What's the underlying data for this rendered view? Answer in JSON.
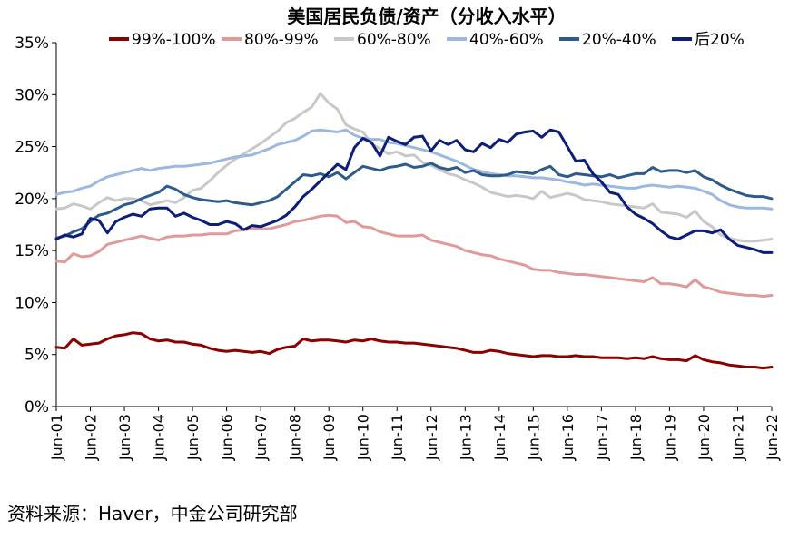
{
  "chart_data": {
    "type": "line",
    "title": "美国居民负债/资产（分收入水平）",
    "xlabel": "",
    "ylabel": "",
    "ylim": [
      0,
      35
    ],
    "y_ticks": [
      "0%",
      "5%",
      "10%",
      "15%",
      "20%",
      "25%",
      "30%",
      "35%"
    ],
    "y_tick_values": [
      0,
      5,
      10,
      15,
      20,
      25,
      30,
      35
    ],
    "x_ticks": [
      "Jun-01",
      "Jun-02",
      "Jun-03",
      "Jun-04",
      "Jun-05",
      "Jun-06",
      "Jun-07",
      "Jun-08",
      "Jun-09",
      "Jun-10",
      "Jun-11",
      "Jun-12",
      "Jun-13",
      "Jun-14",
      "Jun-15",
      "Jun-16",
      "Jun-17",
      "Jun-18",
      "Jun-19",
      "Jun-20",
      "Jun-21",
      "Jun-22"
    ],
    "x_tick_values": [
      2001.5,
      2002.5,
      2003.5,
      2004.5,
      2005.5,
      2006.5,
      2007.5,
      2008.5,
      2009.5,
      2010.5,
      2011.5,
      2012.5,
      2013.5,
      2014.5,
      2015.5,
      2016.5,
      2017.5,
      2018.5,
      2019.5,
      2020.5,
      2021.5,
      2022.5
    ],
    "xlim": [
      2001.5,
      2022.5
    ],
    "legend_position": "top",
    "series": [
      {
        "name": "99%-100%",
        "color": "#8B0000",
        "x": [
          2001.5,
          2001.75,
          2002.0,
          2002.25,
          2002.5,
          2002.75,
          2003.0,
          2003.25,
          2003.5,
          2003.75,
          2004.0,
          2004.25,
          2004.5,
          2004.75,
          2005.0,
          2005.25,
          2005.5,
          2005.75,
          2006.0,
          2006.25,
          2006.5,
          2006.75,
          2007.0,
          2007.25,
          2007.5,
          2007.75,
          2008.0,
          2008.25,
          2008.5,
          2008.75,
          2009.0,
          2009.25,
          2009.5,
          2009.75,
          2010.0,
          2010.25,
          2010.5,
          2010.75,
          2011.0,
          2011.25,
          2011.5,
          2011.75,
          2012.0,
          2012.25,
          2012.5,
          2012.75,
          2013.0,
          2013.25,
          2013.5,
          2013.75,
          2014.0,
          2014.25,
          2014.5,
          2014.75,
          2015.0,
          2015.25,
          2015.5,
          2015.75,
          2016.0,
          2016.25,
          2016.5,
          2016.75,
          2017.0,
          2017.25,
          2017.5,
          2017.75,
          2018.0,
          2018.25,
          2018.5,
          2018.75,
          2019.0,
          2019.25,
          2019.5,
          2019.75,
          2020.0,
          2020.25,
          2020.5,
          2020.75,
          2021.0,
          2021.25,
          2021.5,
          2021.75,
          2022.0,
          2022.25,
          2022.5
        ],
        "values": [
          5.7,
          5.6,
          6.5,
          5.9,
          6.0,
          6.1,
          6.5,
          6.8,
          6.9,
          7.1,
          7.0,
          6.5,
          6.3,
          6.4,
          6.2,
          6.2,
          6.0,
          5.9,
          5.6,
          5.4,
          5.3,
          5.4,
          5.3,
          5.2,
          5.3,
          5.1,
          5.5,
          5.7,
          5.8,
          6.5,
          6.3,
          6.4,
          6.4,
          6.3,
          6.2,
          6.4,
          6.3,
          6.5,
          6.3,
          6.2,
          6.2,
          6.1,
          6.1,
          6.0,
          5.9,
          5.8,
          5.7,
          5.6,
          5.4,
          5.2,
          5.2,
          5.4,
          5.3,
          5.1,
          5.0,
          4.9,
          4.8,
          4.9,
          4.9,
          4.8,
          4.8,
          4.9,
          4.8,
          4.8,
          4.7,
          4.7,
          4.7,
          4.6,
          4.7,
          4.6,
          4.8,
          4.6,
          4.5,
          4.5,
          4.4,
          4.9,
          4.5,
          4.3,
          4.2,
          4.0,
          3.9,
          3.8,
          3.8,
          3.7,
          3.8
        ]
      },
      {
        "name": "80%-99%",
        "color": "#E09A9A",
        "x": [
          2001.5,
          2001.75,
          2002.0,
          2002.25,
          2002.5,
          2002.75,
          2003.0,
          2003.25,
          2003.5,
          2003.75,
          2004.0,
          2004.25,
          2004.5,
          2004.75,
          2005.0,
          2005.25,
          2005.5,
          2005.75,
          2006.0,
          2006.25,
          2006.5,
          2006.75,
          2007.0,
          2007.25,
          2007.5,
          2007.75,
          2008.0,
          2008.25,
          2008.5,
          2008.75,
          2009.0,
          2009.25,
          2009.5,
          2009.75,
          2010.0,
          2010.25,
          2010.5,
          2010.75,
          2011.0,
          2011.25,
          2011.5,
          2011.75,
          2012.0,
          2012.25,
          2012.5,
          2012.75,
          2013.0,
          2013.25,
          2013.5,
          2013.75,
          2014.0,
          2014.25,
          2014.5,
          2014.75,
          2015.0,
          2015.25,
          2015.5,
          2015.75,
          2016.0,
          2016.25,
          2016.5,
          2016.75,
          2017.0,
          2017.25,
          2017.5,
          2017.75,
          2018.0,
          2018.25,
          2018.5,
          2018.75,
          2019.0,
          2019.25,
          2019.5,
          2019.75,
          2020.0,
          2020.25,
          2020.5,
          2020.75,
          2021.0,
          2021.25,
          2021.5,
          2021.75,
          2022.0,
          2022.25,
          2022.5
        ],
        "values": [
          14.0,
          13.9,
          14.7,
          14.4,
          14.5,
          14.9,
          15.6,
          15.8,
          16.0,
          16.2,
          16.4,
          16.2,
          16.0,
          16.3,
          16.4,
          16.4,
          16.5,
          16.5,
          16.6,
          16.6,
          16.6,
          16.9,
          17.0,
          17.1,
          17.1,
          17.1,
          17.3,
          17.5,
          17.8,
          17.9,
          18.1,
          18.3,
          18.4,
          18.3,
          17.7,
          17.8,
          17.3,
          17.2,
          16.8,
          16.6,
          16.4,
          16.4,
          16.4,
          16.5,
          16.0,
          15.8,
          15.6,
          15.4,
          15.0,
          14.8,
          14.6,
          14.5,
          14.2,
          14.0,
          13.8,
          13.6,
          13.2,
          13.1,
          13.1,
          12.9,
          12.8,
          12.7,
          12.7,
          12.6,
          12.5,
          12.4,
          12.3,
          12.2,
          12.1,
          12.0,
          12.4,
          11.8,
          11.8,
          11.7,
          11.5,
          12.2,
          11.5,
          11.3,
          11.0,
          10.9,
          10.8,
          10.7,
          10.7,
          10.6,
          10.7
        ]
      },
      {
        "name": "60%-80%",
        "color": "#C8C8C8",
        "x": [
          2001.5,
          2001.75,
          2002.0,
          2002.25,
          2002.5,
          2002.75,
          2003.0,
          2003.25,
          2003.5,
          2003.75,
          2004.0,
          2004.25,
          2004.5,
          2004.75,
          2005.0,
          2005.25,
          2005.5,
          2005.75,
          2006.0,
          2006.25,
          2006.5,
          2006.75,
          2007.0,
          2007.25,
          2007.5,
          2007.75,
          2008.0,
          2008.25,
          2008.5,
          2008.75,
          2009.0,
          2009.25,
          2009.5,
          2009.75,
          2010.0,
          2010.25,
          2010.5,
          2010.75,
          2011.0,
          2011.25,
          2011.5,
          2011.75,
          2012.0,
          2012.25,
          2012.5,
          2012.75,
          2013.0,
          2013.25,
          2013.5,
          2013.75,
          2014.0,
          2014.25,
          2014.5,
          2014.75,
          2015.0,
          2015.25,
          2015.5,
          2015.75,
          2016.0,
          2016.25,
          2016.5,
          2016.75,
          2017.0,
          2017.25,
          2017.5,
          2017.75,
          2018.0,
          2018.25,
          2018.5,
          2018.75,
          2019.0,
          2019.25,
          2019.5,
          2019.75,
          2020.0,
          2020.25,
          2020.5,
          2020.75,
          2021.0,
          2021.25,
          2021.5,
          2021.75,
          2022.0,
          2022.25,
          2022.5
        ],
        "values": [
          19.0,
          19.1,
          19.5,
          19.3,
          19.0,
          19.6,
          20.1,
          19.8,
          20.0,
          20.0,
          19.8,
          19.4,
          19.6,
          19.8,
          19.6,
          20.1,
          20.8,
          21.0,
          21.7,
          22.5,
          23.2,
          23.8,
          24.3,
          24.8,
          25.3,
          25.9,
          26.5,
          27.3,
          27.7,
          28.3,
          28.8,
          30.1,
          29.2,
          28.6,
          27.1,
          26.7,
          26.4,
          25.3,
          24.8,
          24.3,
          24.5,
          24.1,
          24.2,
          23.5,
          23.2,
          22.8,
          22.4,
          22.2,
          21.8,
          21.5,
          21.1,
          20.6,
          20.4,
          20.2,
          20.3,
          20.2,
          20.0,
          20.7,
          20.1,
          20.3,
          20.5,
          20.3,
          19.9,
          19.8,
          19.7,
          19.5,
          19.4,
          19.3,
          19.2,
          19.1,
          19.5,
          18.7,
          18.6,
          18.5,
          18.2,
          18.8,
          17.8,
          17.3,
          16.5,
          16.2,
          16.0,
          15.9,
          15.9,
          16.0,
          16.1
        ]
      },
      {
        "name": "40%-60%",
        "color": "#9DB8E0",
        "x": [
          2001.5,
          2001.75,
          2002.0,
          2002.25,
          2002.5,
          2002.75,
          2003.0,
          2003.25,
          2003.5,
          2003.75,
          2004.0,
          2004.25,
          2004.5,
          2004.75,
          2005.0,
          2005.25,
          2005.5,
          2005.75,
          2006.0,
          2006.25,
          2006.5,
          2006.75,
          2007.0,
          2007.25,
          2007.5,
          2007.75,
          2008.0,
          2008.25,
          2008.5,
          2008.75,
          2009.0,
          2009.25,
          2009.5,
          2009.75,
          2010.0,
          2010.25,
          2010.5,
          2010.75,
          2011.0,
          2011.25,
          2011.5,
          2011.75,
          2012.0,
          2012.25,
          2012.5,
          2012.75,
          2013.0,
          2013.25,
          2013.5,
          2013.75,
          2014.0,
          2014.25,
          2014.5,
          2014.75,
          2015.0,
          2015.25,
          2015.5,
          2015.75,
          2016.0,
          2016.25,
          2016.5,
          2016.75,
          2017.0,
          2017.25,
          2017.5,
          2017.75,
          2018.0,
          2018.25,
          2018.5,
          2018.75,
          2019.0,
          2019.25,
          2019.5,
          2019.75,
          2020.0,
          2020.25,
          2020.5,
          2020.75,
          2021.0,
          2021.25,
          2021.5,
          2021.75,
          2022.0,
          2022.25,
          2022.5
        ],
        "values": [
          20.4,
          20.6,
          20.7,
          21.0,
          21.2,
          21.7,
          22.1,
          22.3,
          22.5,
          22.7,
          22.9,
          22.7,
          22.9,
          23.0,
          23.1,
          23.1,
          23.2,
          23.3,
          23.4,
          23.6,
          23.8,
          24.0,
          24.1,
          24.2,
          24.5,
          24.8,
          25.2,
          25.4,
          25.6,
          26.0,
          26.5,
          26.6,
          26.5,
          26.4,
          26.6,
          26.1,
          25.8,
          25.7,
          25.7,
          25.4,
          25.3,
          25.1,
          24.9,
          24.7,
          24.5,
          24.2,
          23.9,
          23.6,
          23.2,
          22.8,
          22.6,
          22.4,
          22.3,
          22.2,
          22.2,
          22.1,
          22.0,
          22.0,
          21.9,
          21.8,
          21.6,
          21.5,
          21.3,
          21.4,
          21.3,
          21.2,
          21.1,
          21.0,
          21.0,
          21.2,
          21.3,
          21.2,
          21.1,
          21.2,
          21.1,
          21.0,
          20.7,
          20.4,
          19.8,
          19.4,
          19.2,
          19.1,
          19.1,
          19.1,
          19.0
        ]
      },
      {
        "name": "20%-40%",
        "color": "#2E5B8C",
        "x": [
          2001.5,
          2001.75,
          2002.0,
          2002.25,
          2002.5,
          2002.75,
          2003.0,
          2003.25,
          2003.5,
          2003.75,
          2004.0,
          2004.25,
          2004.5,
          2004.75,
          2005.0,
          2005.25,
          2005.5,
          2005.75,
          2006.0,
          2006.25,
          2006.5,
          2006.75,
          2007.0,
          2007.25,
          2007.5,
          2007.75,
          2008.0,
          2008.25,
          2008.5,
          2008.75,
          2009.0,
          2009.25,
          2009.5,
          2009.75,
          2010.0,
          2010.25,
          2010.5,
          2010.75,
          2011.0,
          2011.25,
          2011.5,
          2011.75,
          2012.0,
          2012.25,
          2012.5,
          2012.75,
          2013.0,
          2013.25,
          2013.5,
          2013.75,
          2014.0,
          2014.25,
          2014.5,
          2014.75,
          2015.0,
          2015.25,
          2015.5,
          2015.75,
          2016.0,
          2016.25,
          2016.5,
          2016.75,
          2017.0,
          2017.25,
          2017.5,
          2017.75,
          2018.0,
          2018.25,
          2018.5,
          2018.75,
          2019.0,
          2019.25,
          2019.5,
          2019.75,
          2020.0,
          2020.25,
          2020.5,
          2020.75,
          2021.0,
          2021.25,
          2021.5,
          2021.75,
          2022.0,
          2022.25,
          2022.5
        ],
        "values": [
          16.2,
          16.4,
          16.8,
          17.1,
          17.8,
          18.4,
          18.6,
          19.0,
          19.4,
          19.6,
          20.0,
          20.3,
          20.6,
          21.2,
          20.9,
          20.4,
          20.1,
          19.9,
          19.8,
          19.7,
          19.8,
          19.6,
          19.5,
          19.4,
          19.6,
          19.8,
          20.2,
          20.9,
          21.6,
          22.3,
          22.2,
          22.4,
          22.1,
          22.5,
          21.9,
          22.5,
          23.1,
          22.9,
          22.7,
          23.0,
          23.1,
          23.3,
          23.0,
          23.1,
          23.4,
          23.0,
          22.8,
          23.0,
          22.5,
          22.7,
          22.3,
          22.2,
          22.2,
          22.3,
          22.6,
          22.5,
          22.4,
          22.8,
          23.1,
          22.3,
          22.1,
          22.4,
          22.3,
          22.2,
          22.1,
          22.3,
          22.0,
          22.2,
          22.4,
          22.4,
          23.0,
          22.6,
          22.7,
          22.7,
          22.5,
          22.7,
          22.1,
          21.8,
          21.3,
          20.9,
          20.6,
          20.3,
          20.2,
          20.2,
          20.0
        ]
      },
      {
        "name": "后20%",
        "color": "#0D1E78",
        "x": [
          2001.5,
          2001.75,
          2002.0,
          2002.25,
          2002.5,
          2002.75,
          2003.0,
          2003.25,
          2003.5,
          2003.75,
          2004.0,
          2004.25,
          2004.5,
          2004.75,
          2005.0,
          2005.25,
          2005.5,
          2005.75,
          2006.0,
          2006.25,
          2006.5,
          2006.75,
          2007.0,
          2007.25,
          2007.5,
          2007.75,
          2008.0,
          2008.25,
          2008.5,
          2008.75,
          2009.0,
          2009.25,
          2009.5,
          2009.75,
          2010.0,
          2010.25,
          2010.5,
          2010.75,
          2011.0,
          2011.25,
          2011.5,
          2011.75,
          2012.0,
          2012.25,
          2012.5,
          2012.75,
          2013.0,
          2013.25,
          2013.5,
          2013.75,
          2014.0,
          2014.25,
          2014.5,
          2014.75,
          2015.0,
          2015.25,
          2015.5,
          2015.75,
          2016.0,
          2016.25,
          2016.5,
          2016.75,
          2017.0,
          2017.25,
          2017.5,
          2017.75,
          2018.0,
          2018.25,
          2018.5,
          2018.75,
          2019.0,
          2019.25,
          2019.5,
          2019.75,
          2020.0,
          2020.25,
          2020.5,
          2020.75,
          2021.0,
          2021.25,
          2021.5,
          2021.75,
          2022.0,
          2022.25,
          2022.5
        ],
        "values": [
          16.1,
          16.5,
          16.3,
          16.6,
          18.1,
          17.9,
          16.7,
          17.8,
          18.2,
          18.5,
          18.3,
          19.0,
          19.1,
          19.1,
          18.3,
          18.6,
          18.2,
          17.9,
          17.5,
          17.5,
          17.8,
          17.6,
          17.0,
          17.4,
          17.3,
          17.6,
          17.9,
          18.4,
          19.2,
          20.2,
          20.9,
          21.7,
          22.5,
          23.3,
          22.8,
          24.9,
          25.8,
          25.4,
          24.1,
          25.9,
          25.5,
          25.2,
          25.9,
          26.0,
          24.6,
          25.6,
          25.2,
          25.6,
          24.7,
          24.5,
          25.3,
          24.9,
          25.7,
          25.4,
          26.2,
          26.4,
          26.5,
          25.9,
          26.6,
          26.4,
          25.0,
          23.6,
          23.7,
          22.4,
          21.6,
          20.6,
          20.4,
          19.2,
          18.5,
          18.1,
          17.6,
          16.9,
          16.3,
          16.1,
          16.5,
          16.9,
          16.9,
          16.7,
          17.0,
          16.1,
          15.5,
          15.3,
          15.1,
          14.8,
          14.8
        ]
      }
    ],
    "source": "资料来源：Haver，中金公司研究部"
  }
}
